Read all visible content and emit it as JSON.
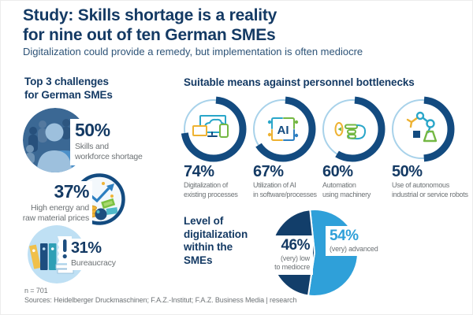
{
  "colors": {
    "navy_text": "#143a64",
    "ring_navy": "#134b80",
    "light_blue": "#2fa0d9",
    "pale_blue_arc": "#a8d2ea",
    "pie_navy": "#123e6a",
    "label_gray": "#6d7275",
    "icon_teal": "#2aa6c9",
    "icon_green": "#74b843",
    "icon_yellow": "#eeb231",
    "icon_blue": "#2d7fc1"
  },
  "header": {
    "title_line1": "Study: Skills shortage is a reality",
    "title_line2": "for nine out of ten German SMEs",
    "subtitle": "Digitalization could provide a remedy, but implementation is often mediocre"
  },
  "challenges": {
    "heading_line1": "Top 3 challenges",
    "heading_line2": "for German SMEs",
    "items": [
      {
        "value": "50%",
        "label_line1": "Skills and",
        "label_line2": "workforce shortage",
        "icon": "crowd-illustration"
      },
      {
        "value": "37%",
        "label_line1": "High energy and",
        "label_line2": "raw material prices",
        "icon": "rising-prices-illustration"
      },
      {
        "value": "31%",
        "label_line1": "Bureaucracy",
        "label_line2": "",
        "icon": "binders-illustration"
      }
    ]
  },
  "means": {
    "heading": "Suitable means against personnel bottlenecks",
    "items": [
      {
        "value": "74%",
        "percent": 74,
        "label_line1": "Digitalization of",
        "label_line2": "existing processes",
        "icon": "cloud-devices-icon"
      },
      {
        "value": "67%",
        "percent": 67,
        "label_line1": "Utilization of AI",
        "label_line2": "in software/processes",
        "icon": "ai-circuit-icon"
      },
      {
        "value": "60%",
        "percent": 60,
        "label_line1": "Automation",
        "label_line2": "using machinery",
        "icon": "push-button-icon"
      },
      {
        "value": "50%",
        "percent": 50,
        "label_line1": "Use of autonomous",
        "label_line2": "industrial or service robots",
        "icon": "robot-arm-icon"
      }
    ]
  },
  "digitalization": {
    "heading_lines": [
      "Level of",
      "digitalization",
      "within the",
      "SMEs"
    ],
    "pie": {
      "start_deg": -6,
      "slices": [
        {
          "pct": "54%",
          "value": 54,
          "label_line1": "(very) advanced",
          "label_line2": "",
          "color": "#2fa0d9"
        },
        {
          "pct": "46%",
          "value": 46,
          "label_line1": "(very) low",
          "label_line2": "to mediocre",
          "color": "#123e6a"
        }
      ]
    }
  },
  "footer": {
    "sample_note": "n = 701",
    "sources": "Sources: Heidelberger Druckmaschinen; F.A.Z.-Institut; F.A.Z. Business Media | research"
  },
  "chart_data": [
    {
      "type": "bar",
      "title": "Top 3 challenges for German SMEs",
      "categories": [
        "Skills and workforce shortage",
        "High energy and raw material prices",
        "Bureaucracy"
      ],
      "values": [
        50,
        37,
        31
      ],
      "unit": "%"
    },
    {
      "type": "bar",
      "title": "Suitable means against personnel bottlenecks",
      "categories": [
        "Digitalization of existing processes",
        "Utilization of AI in software/processes",
        "Automation using machinery",
        "Use of autonomous industrial or service robots"
      ],
      "values": [
        74,
        67,
        60,
        50
      ],
      "unit": "%",
      "style": "donut-rings"
    },
    {
      "type": "pie",
      "title": "Level of digitalization within the SMEs",
      "categories": [
        "(very) advanced",
        "(very) low to mediocre"
      ],
      "values": [
        54,
        46
      ],
      "unit": "%",
      "colors": [
        "#2fa0d9",
        "#123e6a"
      ]
    }
  ]
}
